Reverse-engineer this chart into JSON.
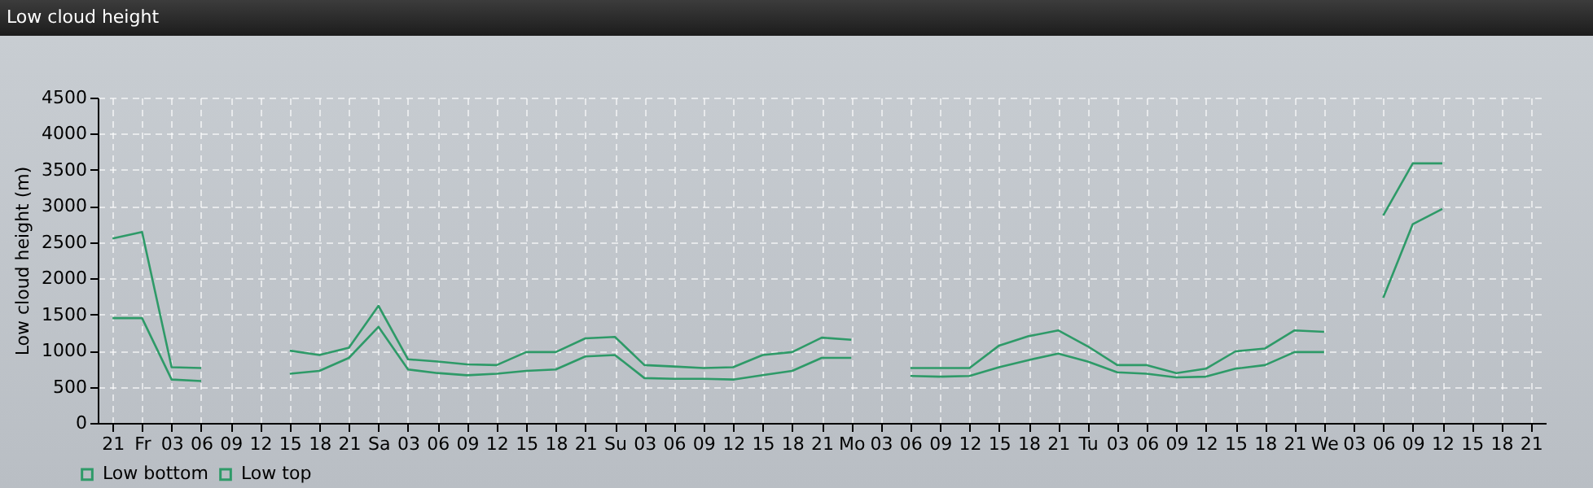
{
  "chart_data": {
    "type": "line",
    "title": "Low cloud height",
    "ylabel": "Low cloud height (m)",
    "categories": [
      "21",
      "Fr",
      "03",
      "06",
      "09",
      "12",
      "15",
      "18",
      "21",
      "Sa",
      "03",
      "06",
      "09",
      "12",
      "15",
      "18",
      "21",
      "Su",
      "03",
      "06",
      "09",
      "12",
      "15",
      "18",
      "21",
      "Mo",
      "03",
      "06",
      "09",
      "12",
      "15",
      "18",
      "21",
      "Tu",
      "03",
      "06",
      "09",
      "12",
      "15",
      "18",
      "21",
      "We",
      "03",
      "06",
      "09",
      "12",
      "15",
      "18",
      "21"
    ],
    "series": [
      {
        "name": "Low bottom",
        "color": "#2e9a68",
        "values": [
          1450,
          1450,
          600,
          580,
          null,
          null,
          680,
          720,
          900,
          1330,
          740,
          690,
          660,
          680,
          720,
          740,
          920,
          940,
          620,
          610,
          610,
          600,
          660,
          720,
          900,
          900,
          null,
          650,
          640,
          650,
          770,
          870,
          960,
          850,
          700,
          680,
          630,
          640,
          750,
          800,
          980,
          980,
          null,
          1730,
          2750,
          2960,
          null,
          null,
          null
        ]
      },
      {
        "name": "Low top",
        "color": "#2e9a68",
        "values": [
          2550,
          2640,
          770,
          760,
          null,
          null,
          1000,
          940,
          1040,
          1620,
          880,
          850,
          810,
          800,
          980,
          980,
          1170,
          1190,
          800,
          780,
          760,
          770,
          940,
          980,
          1180,
          1150,
          null,
          760,
          760,
          760,
          1070,
          1200,
          1280,
          1060,
          800,
          800,
          690,
          750,
          990,
          1030,
          1280,
          1260,
          null,
          2870,
          3590,
          3590,
          null,
          null,
          null
        ]
      }
    ],
    "ylim": [
      0,
      4500
    ],
    "yticks": [
      0,
      500,
      1000,
      1500,
      2000,
      2500,
      3000,
      3500,
      4000,
      4500
    ],
    "grid": true,
    "legend": "bottom left"
  }
}
